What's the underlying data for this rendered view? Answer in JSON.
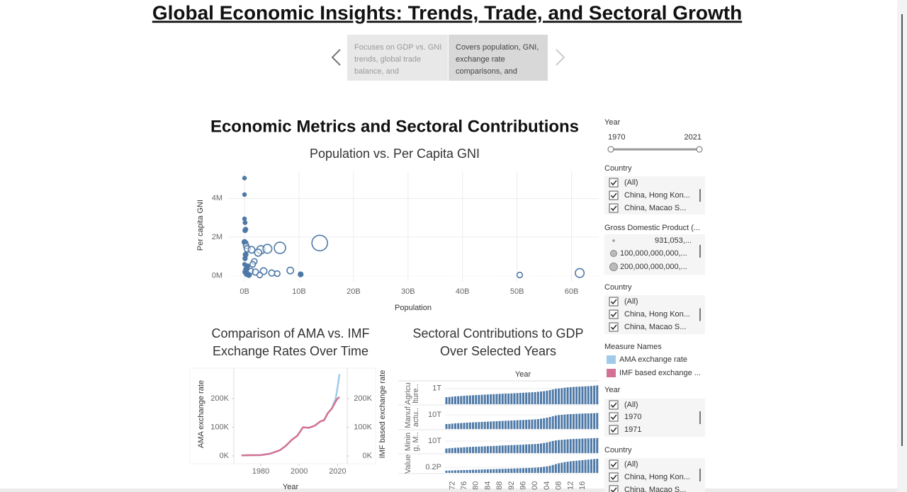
{
  "header": {
    "title": "Global Economic Insights: Trends, Trade, and Sectoral Growth"
  },
  "carousel": {
    "items": [
      "Focuses on GDP vs. GNI trends, global trade balance, and",
      "Covers population, GNI, exchange rate comparisons, and"
    ]
  },
  "dashboard": {
    "title": "Economic Metrics and Sectoral Contributions"
  },
  "chart_data": [
    {
      "type": "scatter",
      "title": "Population vs. Per Capita GNI",
      "xlabel": "Population",
      "ylabel": "Per capita GNI",
      "color": "#4e79a7",
      "grid": true,
      "x": [
        0,
        0,
        0,
        100000000.0,
        200000000.0,
        100000000.0,
        0,
        200000000.0,
        300000000.0,
        500000000.0,
        1300000000.0,
        3000000000.0,
        2500000000.0,
        4200000000.0,
        6500000000.0,
        13800000000.0,
        200000000.0,
        100000000.0,
        1800000000.0,
        1500000000.0,
        500000000.0,
        300000000.0,
        1200000000.0,
        2000000000.0,
        3500000000.0,
        5000000000.0,
        6000000000.0,
        8400000000.0,
        10300000000.0,
        50500000000.0,
        61500000000.0,
        400000000.0,
        800000000.0,
        100000000.0,
        0,
        2800000000.0
      ],
      "values": [
        5050000,
        4200000,
        2950000,
        2750000,
        2400000,
        2350000,
        1750000,
        1700000,
        1550000,
        1400000,
        1350000,
        1350000,
        1200000,
        1400000,
        1450000,
        1700000,
        1100000,
        900000,
        750000,
        600000,
        500000,
        350000,
        250000,
        200000,
        250000,
        150000,
        120000,
        280000,
        80000,
        50000,
        150000,
        100000,
        50000,
        200000,
        600000,
        50000
      ],
      "sizes": [
        1000000000.0,
        1000000000.0,
        1000000000.0,
        2000000000.0,
        5000000000.0,
        5000000000.0,
        10000000000.0,
        10000000000.0,
        20000000000.0,
        30000000000.0,
        40000000000.0,
        80000000000.0,
        50000000000.0,
        100000000000.0,
        200000000000.0,
        450000000000.0,
        10000000000.0,
        5000000000.0,
        20000000000.0,
        20000000000.0,
        10000000000.0,
        10000000000.0,
        20000000000.0,
        30000000000.0,
        40000000000.0,
        30000000000.0,
        20000000000.0,
        40000000000.0,
        10000000000.0,
        20000000000.0,
        100000000000.0,
        10000000000.0,
        10000000000.0,
        5000000000.0,
        1000000000.0,
        20000000000.0
      ],
      "xlim": [
        -3000000000.0,
        65000000000.0
      ],
      "xticks": [
        {
          "value": 0,
          "label": "0B"
        },
        {
          "value": 10000000000.0,
          "label": "10B"
        },
        {
          "value": 20000000000.0,
          "label": "20B"
        },
        {
          "value": 30000000000.0,
          "label": "30B"
        },
        {
          "value": 40000000000.0,
          "label": "40B"
        },
        {
          "value": 50000000000.0,
          "label": "50B"
        },
        {
          "value": 60000000000.0,
          "label": "60B"
        }
      ],
      "ylim": [
        -300000,
        5400000
      ],
      "yticks": [
        {
          "value": 0,
          "label": "0M"
        },
        {
          "value": 2000000,
          "label": "2M"
        },
        {
          "value": 4000000,
          "label": "4M"
        }
      ]
    },
    {
      "type": "line",
      "title": [
        "Comparison of AMA vs. IMF",
        "Exchange Rates Over Time"
      ],
      "xlabel": "Year",
      "ylabel": "AMA exchange rate",
      "y2label": "IMF based exchange rate",
      "x": [
        1970,
        1975,
        1980,
        1985,
        1990,
        1993,
        1996,
        1999,
        2002,
        2005,
        2008,
        2011,
        2013,
        2015,
        2017,
        2019,
        2020,
        2021
      ],
      "xlim": [
        1966,
        2025
      ],
      "xticks": [
        1980,
        2000,
        2020
      ],
      "ylim": [
        -27000,
        306000
      ],
      "yticks": [
        {
          "value": 0,
          "label": "0K"
        },
        {
          "value": 100000,
          "label": "100K"
        },
        {
          "value": 200000,
          "label": "200K"
        }
      ],
      "y2lim": [
        -27000,
        306000
      ],
      "y2ticks": [
        {
          "value": 0,
          "label": "0K"
        },
        {
          "value": 100000,
          "label": "100K"
        },
        {
          "value": 200000,
          "label": "200K"
        }
      ],
      "series": [
        {
          "name": "AMA exchange rate",
          "color": "#a0cbe8",
          "values": [
            2000,
            2500,
            3000,
            8000,
            20000,
            35000,
            55000,
            70000,
            100000,
            98000,
            105000,
            120000,
            125000,
            150000,
            165000,
            200000,
            240000,
            285000
          ]
        },
        {
          "name": "IMF based exchange ...",
          "color": "#d37295",
          "axis": "y2",
          "values": [
            2000,
            2500,
            3000,
            8000,
            20000,
            35000,
            55000,
            70000,
            100000,
            98000,
            105000,
            120000,
            125000,
            150000,
            165000,
            190000,
            200000,
            205000
          ]
        }
      ]
    },
    {
      "type": "bar",
      "title": [
        "Sectoral Contributions to GDP",
        "Over Selected Years"
      ],
      "column_header": "Year",
      "color": "#4e79a7",
      "categories": [
        null,
        null,
        "72",
        null,
        null,
        null,
        "76",
        null,
        null,
        null,
        "80",
        null,
        null,
        null,
        "84",
        null,
        null,
        null,
        "88",
        null,
        null,
        null,
        "92",
        null,
        null,
        null,
        "96",
        null,
        null,
        null,
        "00",
        null,
        null,
        null,
        "04",
        null,
        null,
        null,
        "08",
        null,
        null,
        null,
        "12",
        null,
        null,
        null,
        "16",
        null,
        null,
        null,
        null,
        null
      ],
      "panels": [
        {
          "name": [
            "Agricu",
            "lture.."
          ],
          "ylim": [
            0,
            1350000000000.0
          ],
          "yticks": [
            {
              "value": 1000000000000.0,
              "label": "1T"
            }
          ],
          "values": [
            450000000000.0,
            460000000000.0,
            480000000000.0,
            500000000000.0,
            510000000000.0,
            520000000000.0,
            540000000000.0,
            550000000000.0,
            560000000000.0,
            570000000000.0,
            580000000000.0,
            590000000000.0,
            600000000000.0,
            610000000000.0,
            620000000000.0,
            630000000000.0,
            640000000000.0,
            650000000000.0,
            660000000000.0,
            670000000000.0,
            680000000000.0,
            680000000000.0,
            690000000000.0,
            700000000000.0,
            710000000000.0,
            720000000000.0,
            730000000000.0,
            740000000000.0,
            750000000000.0,
            760000000000.0,
            770000000000.0,
            790000000000.0,
            810000000000.0,
            830000000000.0,
            860000000000.0,
            900000000000.0,
            940000000000.0,
            980000000000.0,
            1000000000000.0,
            1020000000000.0,
            1050000000000.0,
            1070000000000.0,
            1080000000000.0,
            1100000000000.0,
            1110000000000.0,
            1120000000000.0,
            1130000000000.0,
            1140000000000.0,
            1150000000000.0,
            1160000000000.0,
            1180000000000.0,
            1200000000000.0
          ]
        },
        {
          "name": [
            "Manuf",
            "actu.."
          ],
          "ylim": [
            0,
            16500000000000.0
          ],
          "yticks": [
            {
              "value": 10000000000000.0,
              "label": "10T"
            }
          ],
          "values": [
            3500000000000.0,
            3600000000000.0,
            3800000000000.0,
            4000000000000.0,
            4100000000000.0,
            4200000000000.0,
            4400000000000.0,
            4500000000000.0,
            4600000000000.0,
            4700000000000.0,
            4800000000000.0,
            4900000000000.0,
            5000000000000.0,
            5100000000000.0,
            5200000000000.0,
            5300000000000.0,
            5400000000000.0,
            5500000000000.0,
            5600000000000.0,
            5700000000000.0,
            5800000000000.0,
            5900000000000.0,
            6000000000000.0,
            6100000000000.0,
            6200000000000.0,
            6300000000000.0,
            6400000000000.0,
            6500000000000.0,
            6600000000000.0,
            6700000000000.0,
            6800000000000.0,
            7000000000000.0,
            7300000000000.0,
            7600000000000.0,
            8000000000000.0,
            8500000000000.0,
            9000000000000.0,
            9500000000000.0,
            9800000000000.0,
            10000000000000.0,
            10200000000000.0,
            10400000000000.0,
            10500000000000.0,
            10600000000000.0,
            10700000000000.0,
            10800000000000.0,
            10900000000000.0,
            11000000000000.0,
            11000000000000.0,
            11100000000000.0,
            11200000000000.0,
            11300000000000.0
          ]
        },
        {
          "name": [
            "Minin",
            "g, M.."
          ],
          "ylim": [
            0,
            18800000000000.0
          ],
          "yticks": [
            {
              "value": 10000000000000.0,
              "label": "10T"
            }
          ],
          "values": [
            3800000000000.0,
            4000000000000.0,
            4200000000000.0,
            4400000000000.0,
            4500000000000.0,
            4600000000000.0,
            4800000000000.0,
            5000000000000.0,
            5100000000000.0,
            5200000000000.0,
            5300000000000.0,
            5400000000000.0,
            5500000000000.0,
            5600000000000.0,
            5700000000000.0,
            5800000000000.0,
            5900000000000.0,
            6000000000000.0,
            6200000000000.0,
            6300000000000.0,
            6400000000000.0,
            6500000000000.0,
            6600000000000.0,
            6700000000000.0,
            6800000000000.0,
            6900000000000.0,
            7000000000000.0,
            7200000000000.0,
            7300000000000.0,
            7400000000000.0,
            7500000000000.0,
            7700000000000.0,
            8000000000000.0,
            8400000000000.0,
            8800000000000.0,
            9400000000000.0,
            10000000000000.0,
            10500000000000.0,
            10800000000000.0,
            11000000000000.0,
            11200000000000.0,
            11400000000000.0,
            11600000000000.0,
            11700000000000.0,
            11800000000000.0,
            11900000000000.0,
            12000000000000.0,
            12100000000000.0,
            12200000000000.0,
            12300000000000.0,
            12400000000000.0,
            12500000000000.0
          ]
        },
        {
          "name": [
            "Value"
          ],
          "ylim": [
            0,
            625000000000000.0
          ],
          "yticks": [
            {
              "value": 200000000000000.0,
              "label": "0.2P"
            }
          ],
          "values": [
            80000000000000.0,
            83000000000000.0,
            86000000000000.0,
            90000000000000.0,
            93000000000000.0,
            96000000000000.0,
            100000000000000.0,
            103000000000000.0,
            106000000000000.0,
            110000000000000.0,
            113000000000000.0,
            116000000000000.0,
            120000000000000.0,
            123000000000000.0,
            126000000000000.0,
            130000000000000.0,
            133000000000000.0,
            136000000000000.0,
            140000000000000.0,
            143000000000000.0,
            146000000000000.0,
            150000000000000.0,
            153000000000000.0,
            156000000000000.0,
            160000000000000.0,
            164000000000000.0,
            168000000000000.0,
            172000000000000.0,
            176000000000000.0,
            180000000000000.0,
            185000000000000.0,
            192000000000000.0,
            200000000000000.0,
            215000000000000.0,
            230000000000000.0,
            250000000000000.0,
            280000000000000.0,
            310000000000000.0,
            340000000000000.0,
            360000000000000.0,
            380000000000000.0,
            395000000000000.0,
            410000000000000.0,
            420000000000000.0,
            430000000000000.0,
            440000000000000.0,
            450000000000000.0,
            460000000000000.0,
            470000000000000.0,
            480000000000000.0,
            490000000000000.0,
            500000000000000.0
          ]
        }
      ]
    }
  ],
  "filters": [
    {
      "title": "Year",
      "min": "1970",
      "max": "2021"
    },
    {
      "title": "Country",
      "items": [
        "(All)",
        "China, Hong Kon...",
        "China, Macao S..."
      ]
    },
    {
      "title": "Gross Domestic Product (...",
      "items": [
        "931,053,...",
        "100,000,000,000,...",
        "200,000,000,000,..."
      ]
    },
    {
      "title": "Country",
      "items": [
        "(All)",
        "China, Hong Kon...",
        "China, Macao S..."
      ]
    },
    {
      "title": "Measure Names"
    },
    {
      "title": "Year",
      "items": [
        "(All)",
        "1970",
        "1971"
      ]
    },
    {
      "title": "Country",
      "items": [
        "(All)",
        "China, Hong Kon...",
        "China, Macao S..."
      ]
    }
  ]
}
